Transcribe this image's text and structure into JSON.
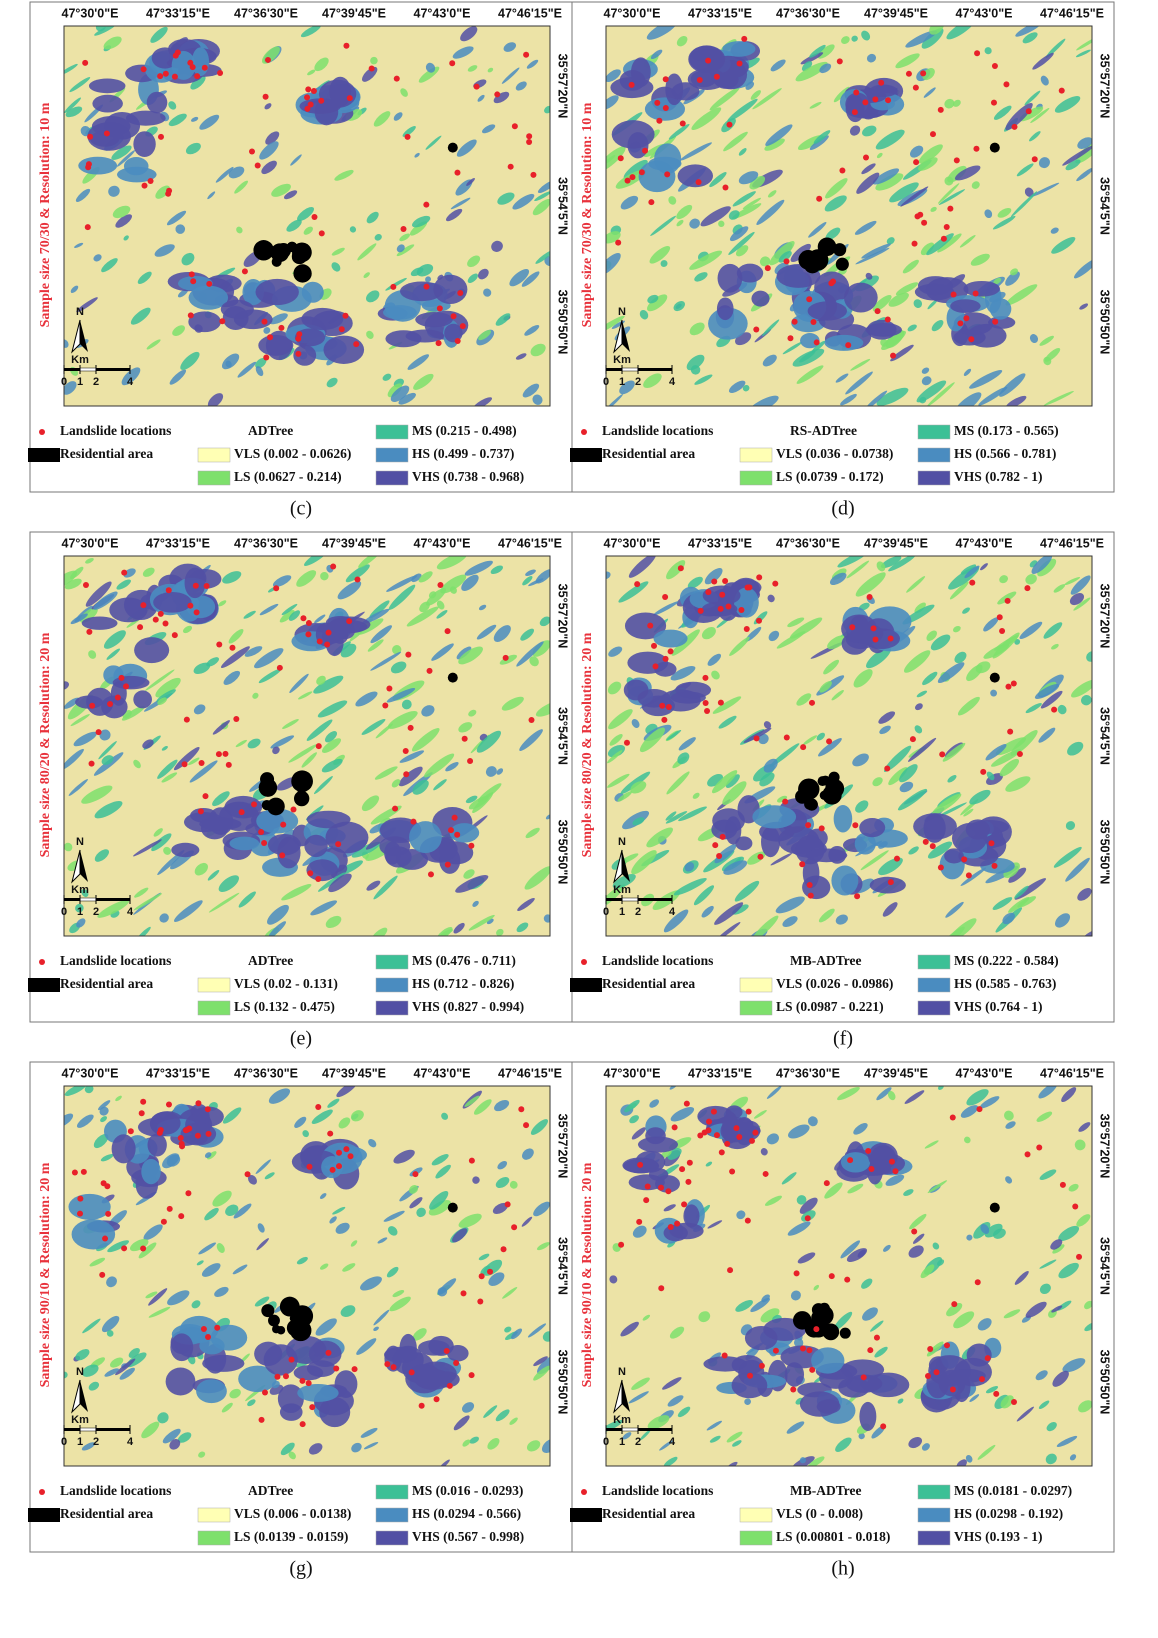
{
  "panels": [
    {
      "caption": "(c)",
      "side_label": "Sample size 70/30 & Resolution: 10 m",
      "lon_ticks": [
        "47°30'0\"E",
        "47°33'15\"E",
        "47°36'30\"E",
        "47°39'45\"E",
        "47°43'0\"E",
        "47°46'15\"E"
      ],
      "lat_ticks": [
        "35°57'20\"N",
        "35°54'5\"N",
        "35°50'50\"N"
      ],
      "north": "N",
      "scale_unit": "Km",
      "scale": [
        "0",
        "1",
        "2",
        "4"
      ],
      "legend": {
        "landslide": "Landslide locations",
        "model": "ADTree",
        "residential": "Residential area",
        "classes": [
          {
            "label": "VLS (0.002 - 0.0626)",
            "color": "#ffffb4"
          },
          {
            "label": "LS (0.0627 - 0.214)",
            "color": "#7ee06c"
          },
          {
            "label": "MS (0.215 - 0.498)",
            "color": "#3cc096"
          },
          {
            "label": "HS (0.499 - 0.737)",
            "color": "#4a8cc0"
          },
          {
            "label": "VHS (0.738 - 0.968)",
            "color": "#5250a4"
          }
        ]
      }
    },
    {
      "caption": "(d)",
      "side_label": "Sample size 70/30 & Resolution: 10 m",
      "lon_ticks": [
        "47°30'0\"E",
        "47°33'15\"E",
        "47°36'30\"E",
        "47°39'45\"E",
        "47°43'0\"E",
        "47°46'15\"E"
      ],
      "lat_ticks": [
        "35°57'20\"N",
        "35°54'5\"N",
        "35°50'50\"N"
      ],
      "north": "N",
      "scale_unit": "Km",
      "scale": [
        "0",
        "1",
        "2",
        "4"
      ],
      "legend": {
        "landslide": "Landslide locations",
        "model": "RS-ADTree",
        "residential": "Residential area",
        "classes": [
          {
            "label": "VLS (0.036 - 0.0738)",
            "color": "#ffffb4"
          },
          {
            "label": "LS (0.0739 - 0.172)",
            "color": "#7ee06c"
          },
          {
            "label": "MS (0.173 - 0.565)",
            "color": "#3cc096"
          },
          {
            "label": "HS (0.566 - 0.781)",
            "color": "#4a8cc0"
          },
          {
            "label": "VHS (0.782 - 1)",
            "color": "#5250a4"
          }
        ]
      }
    },
    {
      "caption": "(e)",
      "side_label": "Sample size 80/20 & Resolution: 20 m",
      "lon_ticks": [
        "47°30'0\"E",
        "47°33'15\"E",
        "47°36'30\"E",
        "47°39'45\"E",
        "47°43'0\"E",
        "47°46'15\"E"
      ],
      "lat_ticks": [
        "35°57'20\"N",
        "35°54'5\"N",
        "35°50'50\"N"
      ],
      "north": "N",
      "scale_unit": "Km",
      "scale": [
        "0",
        "1",
        "2",
        "4"
      ],
      "legend": {
        "landslide": "Landslide locations",
        "model": "ADTree",
        "residential": "Residential area",
        "classes": [
          {
            "label": "VLS (0.02 - 0.131)",
            "color": "#ffffb4"
          },
          {
            "label": "LS (0.132 - 0.475)",
            "color": "#7ee06c"
          },
          {
            "label": "MS (0.476 - 0.711)",
            "color": "#3cc096"
          },
          {
            "label": "HS (0.712 - 0.826)",
            "color": "#4a8cc0"
          },
          {
            "label": "VHS (0.827 - 0.994)",
            "color": "#5250a4"
          }
        ]
      }
    },
    {
      "caption": "(f)",
      "side_label": "Sample size 80/20 & Resolution: 20 m",
      "lon_ticks": [
        "47°30'0\"E",
        "47°33'15\"E",
        "47°36'30\"E",
        "47°39'45\"E",
        "47°43'0\"E",
        "47°46'15\"E"
      ],
      "lat_ticks": [
        "35°57'20\"N",
        "35°54'5\"N",
        "35°50'50\"N"
      ],
      "north": "N",
      "scale_unit": "Km",
      "scale": [
        "0",
        "1",
        "2",
        "4"
      ],
      "legend": {
        "landslide": "Landslide locations",
        "model": "MB-ADTree",
        "residential": "Residential area",
        "classes": [
          {
            "label": "VLS (0.026 - 0.0986)",
            "color": "#ffffb4"
          },
          {
            "label": "LS (0.0987 - 0.221)",
            "color": "#7ee06c"
          },
          {
            "label": "MS (0.222 - 0.584)",
            "color": "#3cc096"
          },
          {
            "label": "HS (0.585 - 0.763)",
            "color": "#4a8cc0"
          },
          {
            "label": "VHS (0.764 - 1)",
            "color": "#5250a4"
          }
        ]
      }
    },
    {
      "caption": "(g)",
      "side_label": "Sample size 90/10 & Resolution: 20 m",
      "lon_ticks": [
        "47°30'0\"E",
        "47°33'15\"E",
        "47°36'30\"E",
        "47°39'45\"E",
        "47°43'0\"E",
        "47°46'15\"E"
      ],
      "lat_ticks": [
        "35°57'20\"N",
        "35°54'5\"N",
        "35°50'50\"N"
      ],
      "north": "N",
      "scale_unit": "Km",
      "scale": [
        "0",
        "1",
        "2",
        "4"
      ],
      "legend": {
        "landslide": "Landslide locations",
        "model": "ADTree",
        "residential": "Residential area",
        "classes": [
          {
            "label": "VLS (0.006 - 0.0138)",
            "color": "#ffffb4"
          },
          {
            "label": "LS (0.0139 - 0.0159)",
            "color": "#7ee06c"
          },
          {
            "label": "MS (0.016 - 0.0293)",
            "color": "#3cc096"
          },
          {
            "label": "HS (0.0294 - 0.566)",
            "color": "#4a8cc0"
          },
          {
            "label": "VHS (0.567 - 0.998)",
            "color": "#5250a4"
          }
        ]
      }
    },
    {
      "caption": "(h)",
      "side_label": "Sample size 90/10 & Resolution: 20 m",
      "lon_ticks": [
        "47°30'0\"E",
        "47°33'15\"E",
        "47°36'30\"E",
        "47°39'45\"E",
        "47°43'0\"E",
        "47°46'15\"E"
      ],
      "lat_ticks": [
        "35°57'20\"N",
        "35°54'5\"N",
        "35°50'50\"N"
      ],
      "north": "N",
      "scale_unit": "Km",
      "scale": [
        "0",
        "1",
        "2",
        "4"
      ],
      "legend": {
        "landslide": "Landslide locations",
        "model": "MB-ADTree",
        "residential": "Residential area",
        "classes": [
          {
            "label": "VLS (0 - 0.008)",
            "color": "#ffffb4"
          },
          {
            "label": "LS (0.00801 - 0.018)",
            "color": "#7ee06c"
          },
          {
            "label": "MS (0.0181 - 0.0297)",
            "color": "#3cc096"
          },
          {
            "label": "HS (0.0298 - 0.192)",
            "color": "#4a8cc0"
          },
          {
            "label": "VHS (0.193 - 1)",
            "color": "#5250a4"
          }
        ]
      }
    }
  ]
}
